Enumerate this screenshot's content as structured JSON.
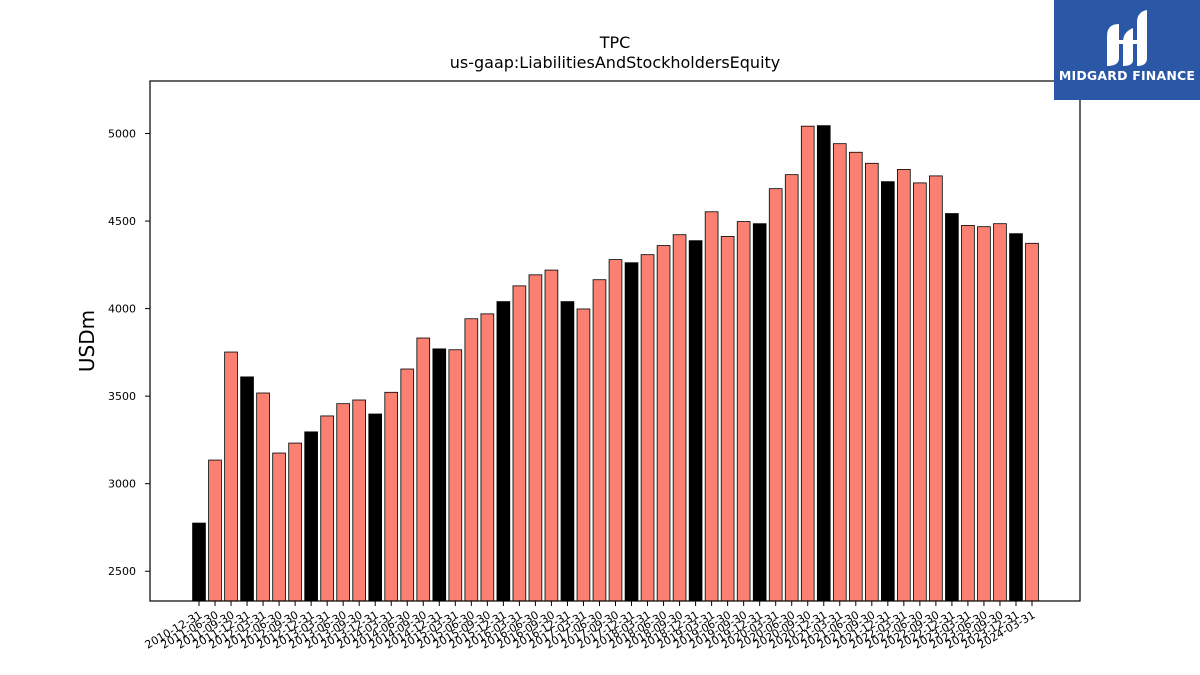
{
  "chart_data": {
    "type": "bar",
    "title": "TPC",
    "subtitle": "us-gaap:LiabilitiesAndStockholdersEquity",
    "ylabel": "USDm",
    "xlabel": "",
    "ylim": [
      2330,
      5300
    ],
    "yticks": [
      2500,
      3000,
      3500,
      4000,
      4500,
      5000
    ],
    "grid": false,
    "colors": {
      "annual": "#000000",
      "quarterly": "#fa8072",
      "edge": "#000000"
    },
    "categories": [
      "2010-12-31",
      "2011-06-30",
      "2011-09-30",
      "2011-12-31",
      "2012-03-31",
      "2012-06-30",
      "2012-09-30",
      "2012-12-31",
      "2013-03-31",
      "2013-06-30",
      "2013-09-30",
      "2013-12-31",
      "2014-03-31",
      "2014-06-30",
      "2014-09-30",
      "2014-12-31",
      "2015-03-31",
      "2015-06-30",
      "2015-09-30",
      "2015-12-31",
      "2016-03-31",
      "2016-06-30",
      "2016-09-30",
      "2016-12-31",
      "2017-03-31",
      "2017-06-30",
      "2017-09-30",
      "2017-12-31",
      "2018-03-31",
      "2018-06-30",
      "2018-09-30",
      "2018-12-31",
      "2019-03-31",
      "2019-06-30",
      "2019-09-30",
      "2019-12-31",
      "2020-03-31",
      "2020-06-30",
      "2020-09-30",
      "2020-12-31",
      "2021-03-31",
      "2021-06-30",
      "2021-09-30",
      "2021-12-31",
      "2022-03-31",
      "2022-06-30",
      "2022-09-30",
      "2022-12-31",
      "2023-03-31",
      "2023-06-30",
      "2023-09-30",
      "2023-12-31",
      "2024-03-31"
    ],
    "values": [
      2775,
      3135,
      3752,
      3610,
      3518,
      3175,
      3232,
      3296,
      3387,
      3457,
      3478,
      3398,
      3522,
      3655,
      3832,
      3770,
      3765,
      3942,
      3970,
      4040,
      4130,
      4193,
      4220,
      4040,
      3998,
      4165,
      4280,
      4262,
      4308,
      4360,
      4422,
      4388,
      4553,
      4412,
      4497,
      4485,
      4685,
      4765,
      5042,
      5045,
      4942,
      4893,
      4830,
      4725,
      4795,
      4718,
      4758,
      4543,
      4475,
      4468,
      4485,
      4428,
      4373
    ]
  },
  "logo": {
    "text": "MIDGARD FINANCE"
  }
}
